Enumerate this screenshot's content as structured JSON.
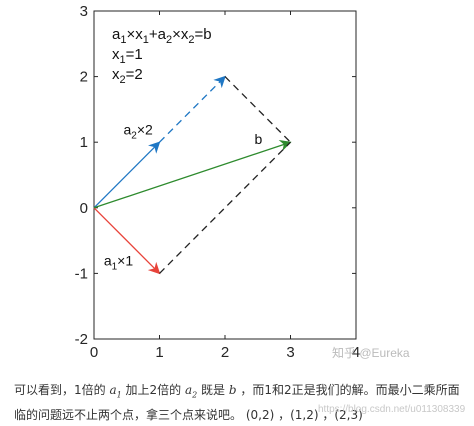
{
  "chart_data": {
    "type": "vector-diagram",
    "xlim": [
      0,
      4
    ],
    "ylim": [
      -2,
      3
    ],
    "xticks": [
      "0",
      "1",
      "2",
      "3",
      "4"
    ],
    "yticks": [
      "-2",
      "-1",
      "0",
      "1",
      "2",
      "3"
    ],
    "grid": false,
    "vectors": [
      {
        "id": "a2x2-solid",
        "from": [
          0,
          0
        ],
        "to": [
          1,
          1
        ],
        "color": "#1f77c4",
        "style": "solid",
        "arrow": true
      },
      {
        "id": "a2x2-dashed",
        "from": [
          1,
          1
        ],
        "to": [
          2,
          2
        ],
        "color": "#1f77c4",
        "style": "dashed",
        "arrow": true
      },
      {
        "id": "a1x1",
        "from": [
          0,
          0
        ],
        "to": [
          1,
          -1
        ],
        "color": "#e8433a",
        "style": "solid",
        "arrow": true
      },
      {
        "id": "b",
        "from": [
          0,
          0
        ],
        "to": [
          3,
          1
        ],
        "color": "#2e8b2e",
        "style": "solid",
        "arrow": true
      },
      {
        "id": "dash-top",
        "from": [
          2,
          2
        ],
        "to": [
          3,
          1
        ],
        "color": "#222222",
        "style": "dashed",
        "arrow": false
      },
      {
        "id": "dash-bottom",
        "from": [
          1,
          -1
        ],
        "to": [
          3,
          1
        ],
        "color": "#222222",
        "style": "dashed",
        "arrow": false
      }
    ],
    "labels": {
      "a2x2": {
        "main": "a",
        "sub": "2",
        "rest": "×2",
        "at": [
          0.45,
          1.12
        ]
      },
      "a1x1": {
        "main": "a",
        "sub": "1",
        "rest": "×1",
        "at": [
          0.15,
          -0.88
        ]
      },
      "b": {
        "text": "b",
        "at": [
          2.45,
          0.97
        ]
      }
    },
    "equations": {
      "line1": {
        "a": "a",
        "s1": "1",
        "x": "×x",
        "s2": "1",
        "plus": "+a",
        "s3": "2",
        "x2": "×x",
        "s4": "2",
        "eq": "=b"
      },
      "line2": {
        "main": "x",
        "sub": "1",
        "rest": "=1"
      },
      "line3": {
        "main": "x",
        "sub": "2",
        "rest": "=2"
      }
    }
  },
  "watermark": "知乎 @Eureka",
  "url_watermark": "https://blog.csdn.net/u011308339",
  "caption": {
    "p1": "可以看到，1倍的 ",
    "m1": "a",
    "m1sub": "1",
    "p2": " 加上2倍的 ",
    "m2": "a",
    "m2sub": "2",
    "p3": " 既是 ",
    "m3": "b",
    "p4": " ，而1和2正是我们的解。而最小二乘所面临的问题远不止两个点，拿三个点来说吧。 (0,2) ，(1,2) ，(2,3)"
  }
}
